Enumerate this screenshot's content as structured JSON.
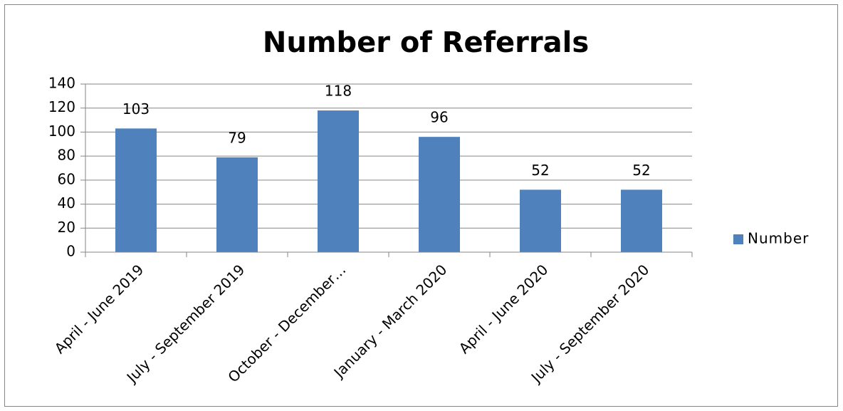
{
  "chart_data": {
    "type": "bar",
    "title": "Number of Referrals",
    "categories": [
      "April - June 2019",
      "July - September 2019",
      "October - December…",
      "January - March 2020",
      "April - June 2020",
      "July - September 2020"
    ],
    "series": [
      {
        "name": "Number",
        "color": "#4f81bd",
        "values": [
          103,
          79,
          118,
          96,
          52,
          52
        ]
      }
    ],
    "ylim": [
      0,
      140
    ],
    "yticks": [
      0,
      20,
      40,
      60,
      80,
      100,
      120,
      140
    ],
    "grid": true,
    "legend": "right"
  }
}
